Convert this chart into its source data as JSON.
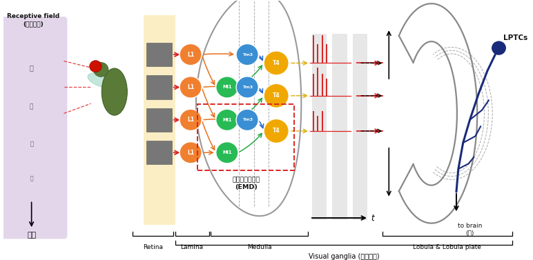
{
  "bg_color": "#ffffff",
  "purple_bg_color": "#c8aed8",
  "purple_bg_alpha": 0.5,
  "lamina_bg_color": "#f5c842",
  "lamina_bg_alpha": 0.3,
  "gray_col_color": "#777777",
  "node_L1_color": "#f08030",
  "node_Mi1_color": "#28bb55",
  "node_Tm3_color": "#3a8fd4",
  "node_T4_color": "#f0a800",
  "spike_color": "#dd2222",
  "arrow_orange": "#e67020",
  "arrow_green": "#22aa44",
  "arrow_blue": "#2266cc",
  "arrow_red": "#dd2222",
  "arrow_black": "#222222",
  "arrow_yellow": "#ddaa00",
  "lobula_color": "#888888",
  "brain_color": "#1a2a7a",
  "emd_box_color": "#dd2222",
  "text_color": "#111111",
  "receptive_field": "Receptive field\n(수용영역)",
  "object_text": "물체",
  "emd_text": "기본동작감지기\n(EMD)",
  "retina_text": "Retina",
  "lamina_text": "Lamina",
  "medulla_text": "Medulla",
  "lobula_text": "Lobula & Lobula plate",
  "visual_ganglia_text": "Visual ganglia (시신경절)",
  "lptcs_text": "LPTCs",
  "to_brain_text": "to brain\n(뇌)"
}
